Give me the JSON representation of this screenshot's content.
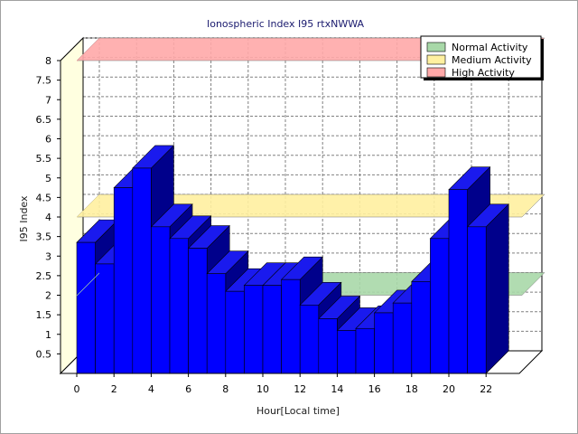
{
  "chart_data": {
    "type": "bar",
    "title": "Ionospheric Index I95 rtxNWWA",
    "xlabel": "Hour[Local time]",
    "ylabel": "I95 Index",
    "ylim": [
      0,
      8
    ],
    "yticks": [
      "0.5",
      "1",
      "1.5",
      "2",
      "2.5",
      "3",
      "3.5",
      "4",
      "4.5",
      "5",
      "5.5",
      "6",
      "6.5",
      "7",
      "7.5",
      "8"
    ],
    "xticks": [
      "0",
      "2",
      "4",
      "6",
      "8",
      "10",
      "12",
      "14",
      "16",
      "18",
      "20",
      "22"
    ],
    "x": [
      0,
      1,
      2,
      3,
      4,
      5,
      6,
      7,
      8,
      9,
      10,
      11,
      12,
      13,
      14,
      15,
      16,
      17,
      18,
      19,
      20,
      21,
      22
    ],
    "values": [
      3.35,
      2.8,
      4.75,
      5.25,
      3.75,
      3.45,
      3.2,
      2.55,
      2.1,
      2.25,
      2.25,
      2.4,
      1.75,
      1.4,
      1.1,
      1.15,
      1.55,
      1.8,
      2.35,
      3.45,
      4.7,
      3.75,
      0
    ],
    "bands": [
      {
        "name": "Normal Activity",
        "value": 2,
        "color": "#a8d8a8"
      },
      {
        "name": "Medium Activity",
        "value": 4,
        "color": "#fff0a0"
      },
      {
        "name": "High Activity",
        "value": 8,
        "color": "#ffa8a8"
      }
    ],
    "bar_color": "#0000ff",
    "grid": true,
    "legend_position": "top-right"
  }
}
